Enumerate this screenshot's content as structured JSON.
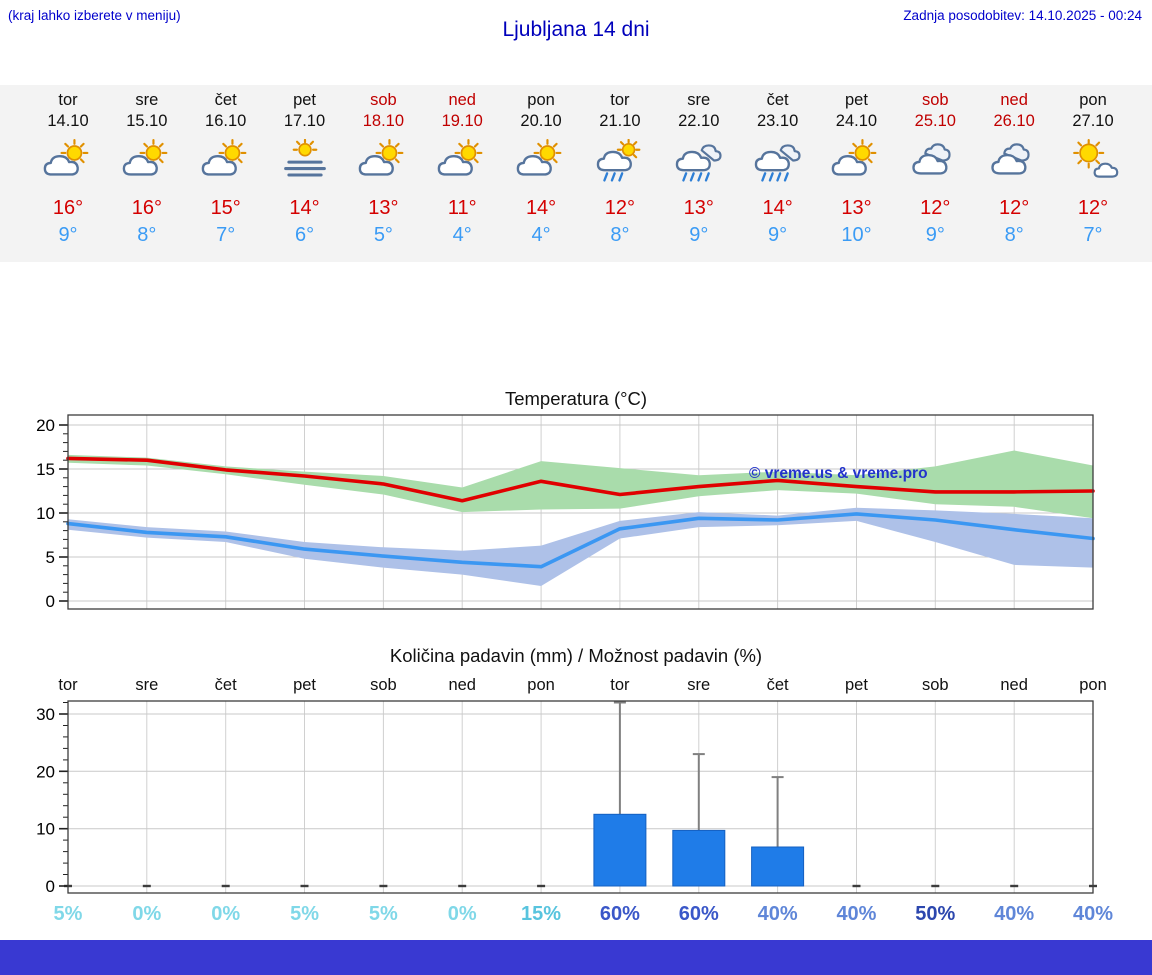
{
  "header": {
    "left_note": "(kraj lahko izberete v meniju)",
    "title": "Ljubljana 14 dni",
    "updated": "Zadnja posodobitev: 14.10.2025 - 00:24"
  },
  "colors": {
    "header_blue": "#0000cc",
    "tmax_red": "#d40000",
    "tmin_blue": "#3a9bf5",
    "weekend_red": "#c00000",
    "temp_line_max": "#e00000",
    "temp_line_min": "#3b97f2",
    "band_max_green": "#a9dcab",
    "band_min_blue": "#aec1e8",
    "bar_blue": "#1f7ce8",
    "whisker_gray": "#808080",
    "watermark_blue": "#2233cc",
    "footer_blue": "#3939d2"
  },
  "days": [
    {
      "name": "tor",
      "date": "14.10",
      "icon": "partly-sunny",
      "weekend": false,
      "tmax": "16°",
      "tmin": "9°",
      "precip_pct": "5%",
      "pct_color": "#80d8e8"
    },
    {
      "name": "sre",
      "date": "15.10",
      "icon": "partly-sunny",
      "weekend": false,
      "tmax": "16°",
      "tmin": "8°",
      "precip_pct": "0%",
      "pct_color": "#80d8e8"
    },
    {
      "name": "čet",
      "date": "16.10",
      "icon": "partly-sunny",
      "weekend": false,
      "tmax": "15°",
      "tmin": "7°",
      "precip_pct": "0%",
      "pct_color": "#80d8e8"
    },
    {
      "name": "pet",
      "date": "17.10",
      "icon": "fog",
      "weekend": false,
      "tmax": "14°",
      "tmin": "6°",
      "precip_pct": "5%",
      "pct_color": "#80d8e8"
    },
    {
      "name": "sob",
      "date": "18.10",
      "icon": "partly-sunny",
      "weekend": true,
      "tmax": "13°",
      "tmin": "5°",
      "precip_pct": "5%",
      "pct_color": "#80d8e8"
    },
    {
      "name": "ned",
      "date": "19.10",
      "icon": "partly-sunny",
      "weekend": true,
      "tmax": "11°",
      "tmin": "4°",
      "precip_pct": "0%",
      "pct_color": "#80d8e8"
    },
    {
      "name": "pon",
      "date": "20.10",
      "icon": "partly-sunny",
      "weekend": false,
      "tmax": "14°",
      "tmin": "4°",
      "precip_pct": "15%",
      "pct_color": "#58c4de"
    },
    {
      "name": "tor",
      "date": "21.10",
      "icon": "sun-showers",
      "weekend": false,
      "tmax": "12°",
      "tmin": "8°",
      "precip_pct": "60%",
      "pct_color": "#3a57c8"
    },
    {
      "name": "sre",
      "date": "22.10",
      "icon": "rain",
      "weekend": false,
      "tmax": "13°",
      "tmin": "9°",
      "precip_pct": "60%",
      "pct_color": "#3a57c8"
    },
    {
      "name": "čet",
      "date": "23.10",
      "icon": "rain",
      "weekend": false,
      "tmax": "14°",
      "tmin": "9°",
      "precip_pct": "40%",
      "pct_color": "#5f86d8"
    },
    {
      "name": "pet",
      "date": "24.10",
      "icon": "partly-sunny",
      "weekend": false,
      "tmax": "13°",
      "tmin": "10°",
      "precip_pct": "40%",
      "pct_color": "#5f86d8"
    },
    {
      "name": "sob",
      "date": "25.10",
      "icon": "cloudy",
      "weekend": true,
      "tmax": "12°",
      "tmin": "9°",
      "precip_pct": "50%",
      "pct_color": "#2c47ae"
    },
    {
      "name": "ned",
      "date": "26.10",
      "icon": "cloudy",
      "weekend": true,
      "tmax": "12°",
      "tmin": "8°",
      "precip_pct": "40%",
      "pct_color": "#5f86d8"
    },
    {
      "name": "pon",
      "date": "27.10",
      "icon": "mostly-sunny",
      "weekend": false,
      "tmax": "12°",
      "tmin": "7°",
      "precip_pct": "40%",
      "pct_color": "#5f86d8"
    }
  ],
  "temp_chart": {
    "title": "Temperatura (°C)",
    "watermark": "© vreme.us & vreme.pro",
    "yticks": [
      0,
      5,
      10,
      15,
      20
    ]
  },
  "precip_chart": {
    "title": "Količina padavin (mm) / Možnost padavin (%)",
    "yticks": [
      0,
      10,
      20,
      30
    ]
  },
  "chart_data": [
    {
      "type": "line",
      "title": "Temperatura (°C)",
      "x": [
        "tor 14.10",
        "sre 15.10",
        "čet 16.10",
        "pet 17.10",
        "sob 18.10",
        "ned 19.10",
        "pon 20.10",
        "tor 21.10",
        "sre 22.10",
        "čet 23.10",
        "pet 24.10",
        "sob 25.10",
        "ned 26.10",
        "pon 27.10"
      ],
      "ylim": [
        -1,
        21
      ],
      "grid": true,
      "legend": "none",
      "series": [
        {
          "name": "Max temperatura (°C)",
          "color": "#e00000",
          "values": [
            16.2,
            16,
            14.9,
            14.2,
            13.3,
            11.4,
            13.6,
            12.1,
            13,
            13.7,
            13,
            12.4,
            12.4,
            12.5
          ]
        },
        {
          "name": "Min temperatura (°C)",
          "color": "#3b97f2",
          "values": [
            8.8,
            7.8,
            7.3,
            5.9,
            5.1,
            4.4,
            3.9,
            8.2,
            9.4,
            9.2,
            9.9,
            9.2,
            8.1,
            7.1
          ]
        },
        {
          "name": "Max razpon zgornja meja",
          "color": "#a9dcab",
          "values": [
            16.6,
            16.3,
            15.3,
            14.7,
            14.2,
            12.9,
            15.9,
            15.1,
            14.3,
            14.7,
            14.3,
            15.3,
            17.1,
            15.4
          ]
        },
        {
          "name": "Max razpon spodnja meja",
          "color": "#a9dcab",
          "values": [
            15.7,
            15.4,
            14.4,
            13.2,
            12.1,
            10.1,
            10.4,
            10.5,
            11.9,
            12.6,
            12.2,
            11,
            10.7,
            9.4
          ]
        },
        {
          "name": "Min razpon zgornja meja",
          "color": "#aec1e8",
          "values": [
            9.3,
            8.4,
            7.9,
            6.7,
            6.1,
            5.7,
            6.3,
            9.1,
            10.1,
            9.7,
            10.6,
            10.3,
            9.9,
            9.4
          ]
        },
        {
          "name": "Min razpon spodnja meja",
          "color": "#aec1e8",
          "values": [
            8.1,
            7.2,
            6.7,
            4.8,
            3.8,
            3,
            1.7,
            7.1,
            8.4,
            8.6,
            9.1,
            6.7,
            4.1,
            3.8
          ]
        }
      ]
    },
    {
      "type": "bar",
      "title": "Količina padavin (mm) / Možnost padavin (%)",
      "categories": [
        "tor",
        "sre",
        "čet",
        "pet",
        "sob",
        "ned",
        "pon",
        "tor",
        "sre",
        "čet",
        "pet",
        "sob",
        "ned",
        "pon"
      ],
      "values": [
        0,
        0,
        0,
        0,
        0,
        0,
        0,
        12.5,
        9.7,
        6.8,
        0,
        0,
        0,
        0
      ],
      "whisker_max": [
        0,
        0,
        0,
        0,
        0,
        0,
        0,
        32,
        23,
        19,
        0,
        0,
        0,
        0
      ],
      "probability_pct": [
        5,
        0,
        0,
        5,
        5,
        0,
        15,
        60,
        60,
        40,
        40,
        50,
        40,
        40
      ],
      "ylim": [
        0,
        33
      ],
      "ylabel": "mm",
      "grid": true
    }
  ]
}
